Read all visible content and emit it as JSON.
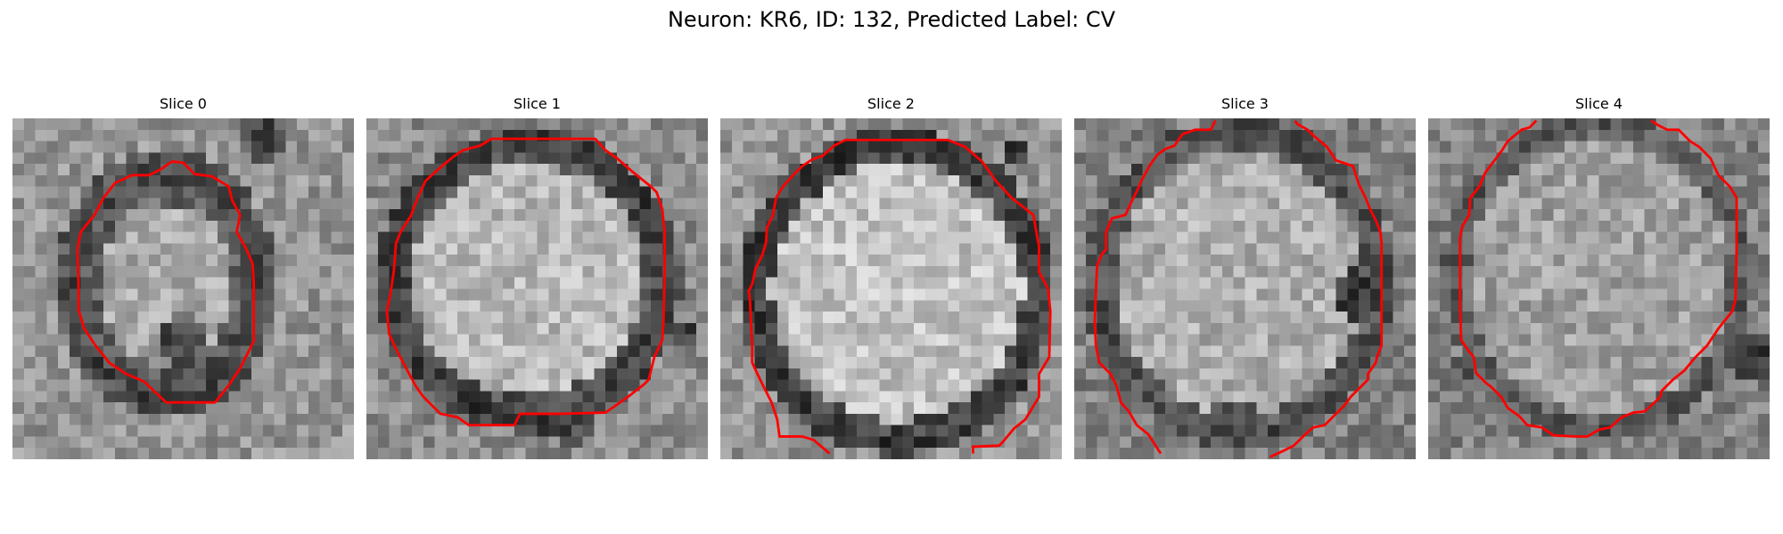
{
  "figure": {
    "title": "Neuron: KR6, ID: 132, Predicted Label: CV"
  },
  "panels": [
    {
      "title": "Slice 0"
    },
    {
      "title": "Slice 1"
    },
    {
      "title": "Slice 2"
    },
    {
      "title": "Slice 3"
    },
    {
      "title": "Slice 4"
    }
  ],
  "colors": {
    "contour": "#ff0000"
  }
}
